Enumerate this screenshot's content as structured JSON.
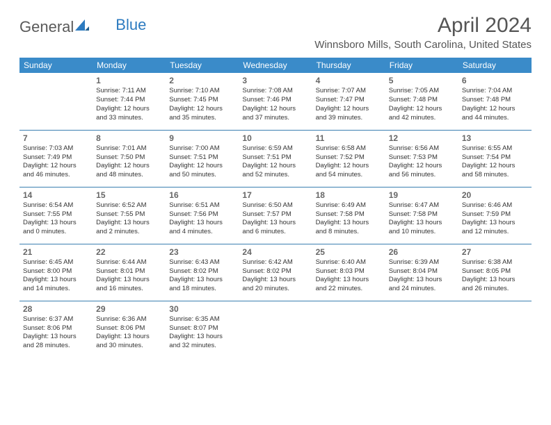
{
  "logo": {
    "part1": "General",
    "part2": "Blue"
  },
  "title": "April 2024",
  "location": "Winnsboro Mills, South Carolina, United States",
  "colors": {
    "header_bg": "#3a8bc9",
    "header_text": "#ffffff",
    "border": "#3a7fb0",
    "logo_blue": "#2d7bc0",
    "title_text": "#555555",
    "body_text": "#333333",
    "day_num": "#666666"
  },
  "weekdays": [
    "Sunday",
    "Monday",
    "Tuesday",
    "Wednesday",
    "Thursday",
    "Friday",
    "Saturday"
  ],
  "weeks": [
    [
      {
        "day": ""
      },
      {
        "day": "1",
        "sunrise": "Sunrise: 7:11 AM",
        "sunset": "Sunset: 7:44 PM",
        "dl1": "Daylight: 12 hours",
        "dl2": "and 33 minutes."
      },
      {
        "day": "2",
        "sunrise": "Sunrise: 7:10 AM",
        "sunset": "Sunset: 7:45 PM",
        "dl1": "Daylight: 12 hours",
        "dl2": "and 35 minutes."
      },
      {
        "day": "3",
        "sunrise": "Sunrise: 7:08 AM",
        "sunset": "Sunset: 7:46 PM",
        "dl1": "Daylight: 12 hours",
        "dl2": "and 37 minutes."
      },
      {
        "day": "4",
        "sunrise": "Sunrise: 7:07 AM",
        "sunset": "Sunset: 7:47 PM",
        "dl1": "Daylight: 12 hours",
        "dl2": "and 39 minutes."
      },
      {
        "day": "5",
        "sunrise": "Sunrise: 7:05 AM",
        "sunset": "Sunset: 7:48 PM",
        "dl1": "Daylight: 12 hours",
        "dl2": "and 42 minutes."
      },
      {
        "day": "6",
        "sunrise": "Sunrise: 7:04 AM",
        "sunset": "Sunset: 7:48 PM",
        "dl1": "Daylight: 12 hours",
        "dl2": "and 44 minutes."
      }
    ],
    [
      {
        "day": "7",
        "sunrise": "Sunrise: 7:03 AM",
        "sunset": "Sunset: 7:49 PM",
        "dl1": "Daylight: 12 hours",
        "dl2": "and 46 minutes."
      },
      {
        "day": "8",
        "sunrise": "Sunrise: 7:01 AM",
        "sunset": "Sunset: 7:50 PM",
        "dl1": "Daylight: 12 hours",
        "dl2": "and 48 minutes."
      },
      {
        "day": "9",
        "sunrise": "Sunrise: 7:00 AM",
        "sunset": "Sunset: 7:51 PM",
        "dl1": "Daylight: 12 hours",
        "dl2": "and 50 minutes."
      },
      {
        "day": "10",
        "sunrise": "Sunrise: 6:59 AM",
        "sunset": "Sunset: 7:51 PM",
        "dl1": "Daylight: 12 hours",
        "dl2": "and 52 minutes."
      },
      {
        "day": "11",
        "sunrise": "Sunrise: 6:58 AM",
        "sunset": "Sunset: 7:52 PM",
        "dl1": "Daylight: 12 hours",
        "dl2": "and 54 minutes."
      },
      {
        "day": "12",
        "sunrise": "Sunrise: 6:56 AM",
        "sunset": "Sunset: 7:53 PM",
        "dl1": "Daylight: 12 hours",
        "dl2": "and 56 minutes."
      },
      {
        "day": "13",
        "sunrise": "Sunrise: 6:55 AM",
        "sunset": "Sunset: 7:54 PM",
        "dl1": "Daylight: 12 hours",
        "dl2": "and 58 minutes."
      }
    ],
    [
      {
        "day": "14",
        "sunrise": "Sunrise: 6:54 AM",
        "sunset": "Sunset: 7:55 PM",
        "dl1": "Daylight: 13 hours",
        "dl2": "and 0 minutes."
      },
      {
        "day": "15",
        "sunrise": "Sunrise: 6:52 AM",
        "sunset": "Sunset: 7:55 PM",
        "dl1": "Daylight: 13 hours",
        "dl2": "and 2 minutes."
      },
      {
        "day": "16",
        "sunrise": "Sunrise: 6:51 AM",
        "sunset": "Sunset: 7:56 PM",
        "dl1": "Daylight: 13 hours",
        "dl2": "and 4 minutes."
      },
      {
        "day": "17",
        "sunrise": "Sunrise: 6:50 AM",
        "sunset": "Sunset: 7:57 PM",
        "dl1": "Daylight: 13 hours",
        "dl2": "and 6 minutes."
      },
      {
        "day": "18",
        "sunrise": "Sunrise: 6:49 AM",
        "sunset": "Sunset: 7:58 PM",
        "dl1": "Daylight: 13 hours",
        "dl2": "and 8 minutes."
      },
      {
        "day": "19",
        "sunrise": "Sunrise: 6:47 AM",
        "sunset": "Sunset: 7:58 PM",
        "dl1": "Daylight: 13 hours",
        "dl2": "and 10 minutes."
      },
      {
        "day": "20",
        "sunrise": "Sunrise: 6:46 AM",
        "sunset": "Sunset: 7:59 PM",
        "dl1": "Daylight: 13 hours",
        "dl2": "and 12 minutes."
      }
    ],
    [
      {
        "day": "21",
        "sunrise": "Sunrise: 6:45 AM",
        "sunset": "Sunset: 8:00 PM",
        "dl1": "Daylight: 13 hours",
        "dl2": "and 14 minutes."
      },
      {
        "day": "22",
        "sunrise": "Sunrise: 6:44 AM",
        "sunset": "Sunset: 8:01 PM",
        "dl1": "Daylight: 13 hours",
        "dl2": "and 16 minutes."
      },
      {
        "day": "23",
        "sunrise": "Sunrise: 6:43 AM",
        "sunset": "Sunset: 8:02 PM",
        "dl1": "Daylight: 13 hours",
        "dl2": "and 18 minutes."
      },
      {
        "day": "24",
        "sunrise": "Sunrise: 6:42 AM",
        "sunset": "Sunset: 8:02 PM",
        "dl1": "Daylight: 13 hours",
        "dl2": "and 20 minutes."
      },
      {
        "day": "25",
        "sunrise": "Sunrise: 6:40 AM",
        "sunset": "Sunset: 8:03 PM",
        "dl1": "Daylight: 13 hours",
        "dl2": "and 22 minutes."
      },
      {
        "day": "26",
        "sunrise": "Sunrise: 6:39 AM",
        "sunset": "Sunset: 8:04 PM",
        "dl1": "Daylight: 13 hours",
        "dl2": "and 24 minutes."
      },
      {
        "day": "27",
        "sunrise": "Sunrise: 6:38 AM",
        "sunset": "Sunset: 8:05 PM",
        "dl1": "Daylight: 13 hours",
        "dl2": "and 26 minutes."
      }
    ],
    [
      {
        "day": "28",
        "sunrise": "Sunrise: 6:37 AM",
        "sunset": "Sunset: 8:06 PM",
        "dl1": "Daylight: 13 hours",
        "dl2": "and 28 minutes."
      },
      {
        "day": "29",
        "sunrise": "Sunrise: 6:36 AM",
        "sunset": "Sunset: 8:06 PM",
        "dl1": "Daylight: 13 hours",
        "dl2": "and 30 minutes."
      },
      {
        "day": "30",
        "sunrise": "Sunrise: 6:35 AM",
        "sunset": "Sunset: 8:07 PM",
        "dl1": "Daylight: 13 hours",
        "dl2": "and 32 minutes."
      },
      {
        "day": ""
      },
      {
        "day": ""
      },
      {
        "day": ""
      },
      {
        "day": ""
      }
    ]
  ]
}
